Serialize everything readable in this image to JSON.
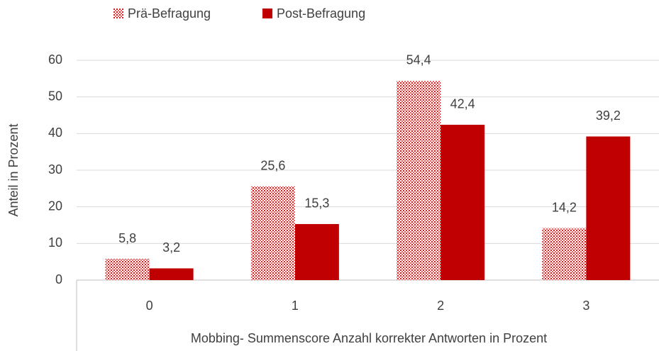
{
  "chart_data": {
    "type": "bar",
    "x_label": "Mobbing- Summenscore Anzahl korrekter Antworten in Prozent",
    "y_label": "Anteil in Prozent",
    "categories": [
      "0",
      "1",
      "2",
      "3"
    ],
    "series": [
      {
        "name": "Prä-Befragung",
        "color": "#c00000",
        "pattern": "dotted",
        "values": [
          5.8,
          25.6,
          54.4,
          14.2
        ],
        "value_labels": [
          "5,8",
          "25,6",
          "54,4",
          "14,2"
        ]
      },
      {
        "name": "Post-Befragung",
        "color": "#c00000",
        "values": [
          3.2,
          15.3,
          42.4,
          39.2
        ],
        "value_labels": [
          "3,2",
          "15,3",
          "42,4",
          "39,2"
        ]
      }
    ],
    "ylim": [
      0,
      60
    ],
    "yticks": [
      0,
      10,
      20,
      30,
      40,
      50,
      60
    ],
    "grid": true,
    "legend": "top"
  }
}
